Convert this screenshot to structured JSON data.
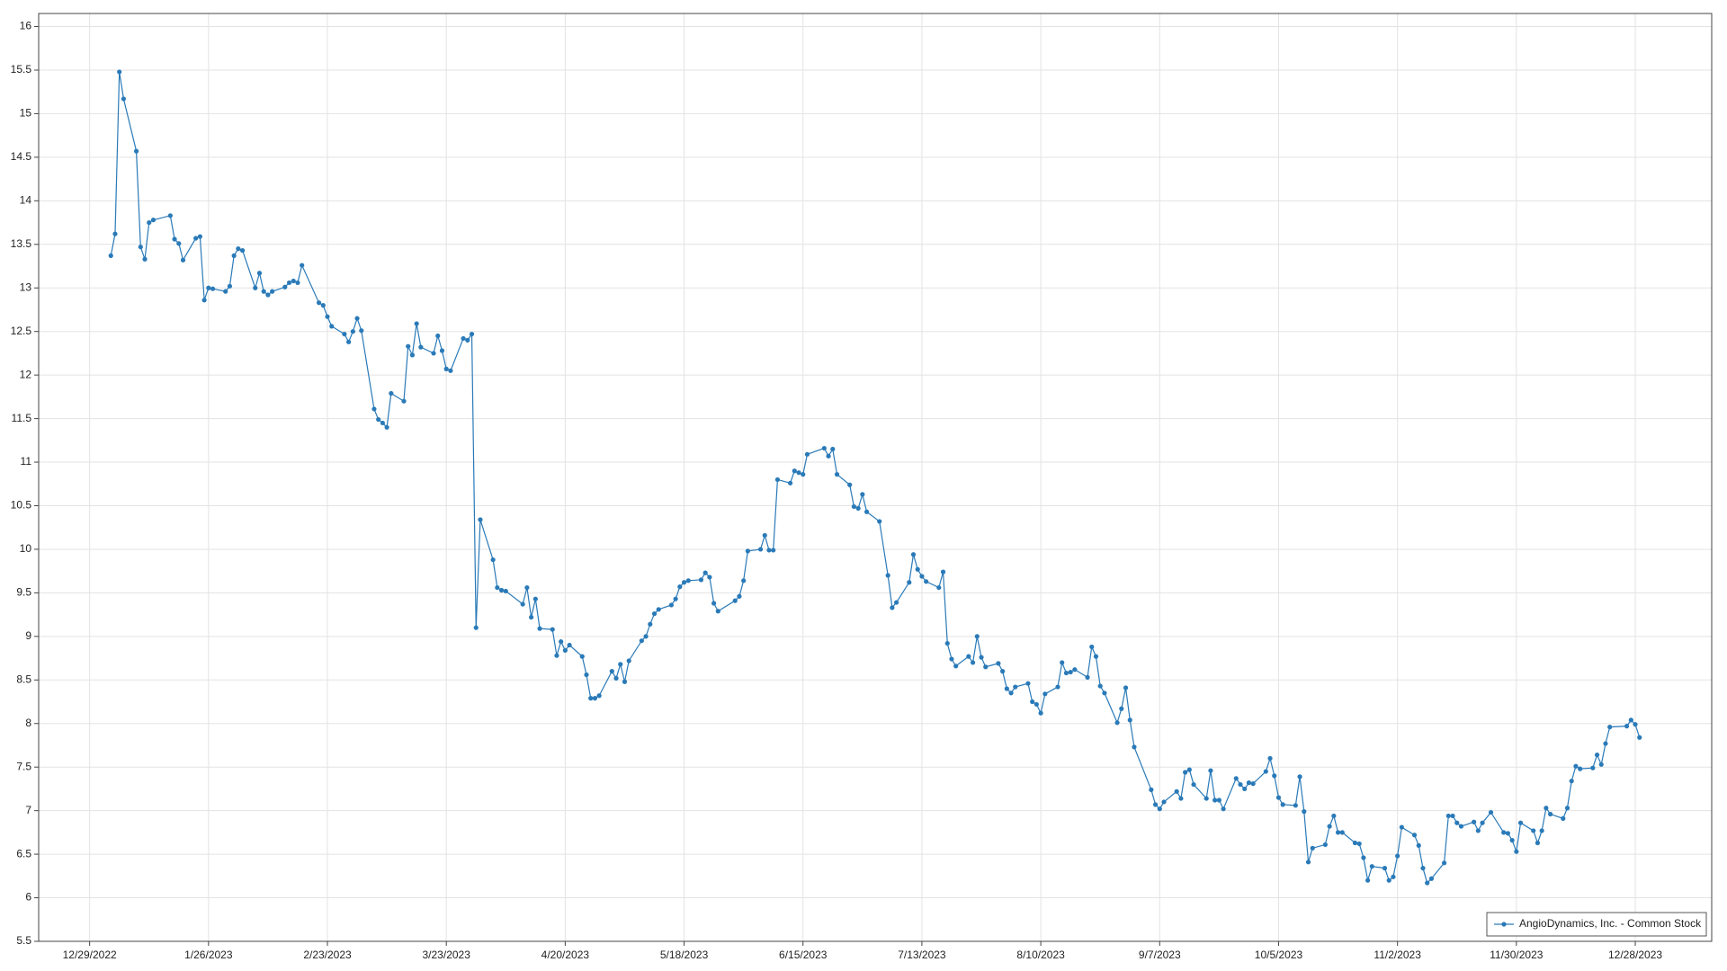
{
  "chart_data": {
    "type": "line",
    "xlim": [
      "12/17/2022",
      "1/15/2024"
    ],
    "xticks": [
      "12/29/2022",
      "1/26/2023",
      "2/23/2023",
      "3/23/2023",
      "4/20/2023",
      "5/18/2023",
      "6/15/2023",
      "7/13/2023",
      "8/10/2023",
      "9/7/2023",
      "10/5/2023",
      "11/2/2023",
      "11/30/2023",
      "12/28/2023"
    ],
    "ylim": [
      5.5,
      16.15
    ],
    "yticks": [
      5.5,
      6,
      6.5,
      7,
      7.5,
      8,
      8.5,
      9,
      9.5,
      10,
      10.5,
      11,
      11.5,
      12,
      12.5,
      13,
      13.5,
      14,
      14.5,
      15,
      15.5,
      16
    ],
    "grid": true,
    "legend": "bottom-right",
    "x": [
      "1/3/2023",
      "1/4/2023",
      "1/5/2023",
      "1/6/2023",
      "1/9/2023",
      "1/10/2023",
      "1/11/2023",
      "1/12/2023",
      "1/13/2023",
      "1/17/2023",
      "1/18/2023",
      "1/19/2023",
      "1/20/2023",
      "1/23/2023",
      "1/24/2023",
      "1/25/2023",
      "1/26/2023",
      "1/27/2023",
      "1/30/2023",
      "1/31/2023",
      "2/1/2023",
      "2/2/2023",
      "2/3/2023",
      "2/6/2023",
      "2/7/2023",
      "2/8/2023",
      "2/9/2023",
      "2/10/2023",
      "2/13/2023",
      "2/14/2023",
      "2/15/2023",
      "2/16/2023",
      "2/17/2023",
      "2/21/2023",
      "2/22/2023",
      "2/23/2023",
      "2/24/2023",
      "2/27/2023",
      "2/28/2023",
      "3/1/2023",
      "3/2/2023",
      "3/3/2023",
      "3/6/2023",
      "3/7/2023",
      "3/8/2023",
      "3/9/2023",
      "3/10/2023",
      "3/13/2023",
      "3/14/2023",
      "3/15/2023",
      "3/16/2023",
      "3/17/2023",
      "3/20/2023",
      "3/21/2023",
      "3/22/2023",
      "3/23/2023",
      "3/24/2023",
      "3/27/2023",
      "3/28/2023",
      "3/29/2023",
      "3/30/2023",
      "3/31/2023",
      "4/3/2023",
      "4/4/2023",
      "4/5/2023",
      "4/6/2023",
      "4/10/2023",
      "4/11/2023",
      "4/12/2023",
      "4/13/2023",
      "4/14/2023",
      "4/17/2023",
      "4/18/2023",
      "4/19/2023",
      "4/20/2023",
      "4/21/2023",
      "4/24/2023",
      "4/25/2023",
      "4/26/2023",
      "4/27/2023",
      "4/28/2023",
      "5/1/2023",
      "5/2/2023",
      "5/3/2023",
      "5/4/2023",
      "5/5/2023",
      "5/8/2023",
      "5/9/2023",
      "5/10/2023",
      "5/11/2023",
      "5/12/2023",
      "5/15/2023",
      "5/16/2023",
      "5/17/2023",
      "5/18/2023",
      "5/19/2023",
      "5/22/2023",
      "5/23/2023",
      "5/24/2023",
      "5/25/2023",
      "5/26/2023",
      "5/30/2023",
      "5/31/2023",
      "6/1/2023",
      "6/2/2023",
      "6/5/2023",
      "6/6/2023",
      "6/7/2023",
      "6/8/2023",
      "6/9/2023",
      "6/12/2023",
      "6/13/2023",
      "6/14/2023",
      "6/15/2023",
      "6/16/2023",
      "6/20/2023",
      "6/21/2023",
      "6/22/2023",
      "6/23/2023",
      "6/26/2023",
      "6/27/2023",
      "6/28/2023",
      "6/29/2023",
      "6/30/2023",
      "7/3/2023",
      "7/5/2023",
      "7/6/2023",
      "7/7/2023",
      "7/10/2023",
      "7/11/2023",
      "7/12/2023",
      "7/13/2023",
      "7/14/2023",
      "7/17/2023",
      "7/18/2023",
      "7/19/2023",
      "7/20/2023",
      "7/21/2023",
      "7/24/2023",
      "7/25/2023",
      "7/26/2023",
      "7/27/2023",
      "7/28/2023",
      "7/31/2023",
      "8/1/2023",
      "8/2/2023",
      "8/3/2023",
      "8/4/2023",
      "8/7/2023",
      "8/8/2023",
      "8/9/2023",
      "8/10/2023",
      "8/11/2023",
      "8/14/2023",
      "8/15/2023",
      "8/16/2023",
      "8/17/2023",
      "8/18/2023",
      "8/21/2023",
      "8/22/2023",
      "8/23/2023",
      "8/24/2023",
      "8/25/2023",
      "8/28/2023",
      "8/29/2023",
      "8/30/2023",
      "8/31/2023",
      "9/1/2023",
      "9/5/2023",
      "9/6/2023",
      "9/7/2023",
      "9/8/2023",
      "9/11/2023",
      "9/12/2023",
      "9/13/2023",
      "9/14/2023",
      "9/15/2023",
      "9/18/2023",
      "9/19/2023",
      "9/20/2023",
      "9/21/2023",
      "9/22/2023",
      "9/25/2023",
      "9/26/2023",
      "9/27/2023",
      "9/28/2023",
      "9/29/2023",
      "10/2/2023",
      "10/3/2023",
      "10/4/2023",
      "10/5/2023",
      "10/6/2023",
      "10/9/2023",
      "10/10/2023",
      "10/11/2023",
      "10/12/2023",
      "10/13/2023",
      "10/16/2023",
      "10/17/2023",
      "10/18/2023",
      "10/19/2023",
      "10/20/2023",
      "10/23/2023",
      "10/24/2023",
      "10/25/2023",
      "10/26/2023",
      "10/27/2023",
      "10/30/2023",
      "10/31/2023",
      "11/1/2023",
      "11/2/2023",
      "11/3/2023",
      "11/6/2023",
      "11/7/2023",
      "11/8/2023",
      "11/9/2023",
      "11/10/2023",
      "11/13/2023",
      "11/14/2023",
      "11/15/2023",
      "11/16/2023",
      "11/17/2023",
      "11/20/2023",
      "11/21/2023",
      "11/22/2023",
      "11/24/2023",
      "11/27/2023",
      "11/28/2023",
      "11/29/2023",
      "11/30/2023",
      "12/1/2023",
      "12/4/2023",
      "12/5/2023",
      "12/6/2023",
      "12/7/2023",
      "12/8/2023",
      "12/11/2023",
      "12/12/2023",
      "12/13/2023",
      "12/14/2023",
      "12/15/2023",
      "12/18/2023",
      "12/19/2023",
      "12/20/2023",
      "12/21/2023",
      "12/22/2023",
      "12/26/2023",
      "12/27/2023",
      "12/28/2023",
      "12/29/2023"
    ],
    "series": [
      {
        "name": "AngioDynamics, Inc. - Common Stock",
        "color": "#2a7ab8",
        "values": [
          13.37,
          13.62,
          15.48,
          15.17,
          14.57,
          13.47,
          13.33,
          13.75,
          13.78,
          13.83,
          13.56,
          13.51,
          13.32,
          13.57,
          13.59,
          12.86,
          13.0,
          12.99,
          12.96,
          13.02,
          13.37,
          13.45,
          13.43,
          13.0,
          13.17,
          12.96,
          12.92,
          12.96,
          13.01,
          13.06,
          13.08,
          13.06,
          13.26,
          12.83,
          12.8,
          12.67,
          12.56,
          12.47,
          12.38,
          12.5,
          12.65,
          12.51,
          11.61,
          11.49,
          11.45,
          11.4,
          11.79,
          11.7,
          12.33,
          12.23,
          12.59,
          12.32,
          12.25,
          12.45,
          12.28,
          12.07,
          12.05,
          12.42,
          12.4,
          12.47,
          9.1,
          10.34,
          9.88,
          9.56,
          9.53,
          9.52,
          9.37,
          9.56,
          9.22,
          9.43,
          9.09,
          9.08,
          8.78,
          8.94,
          8.84,
          8.9,
          8.77,
          8.56,
          8.29,
          8.29,
          8.32,
          8.6,
          8.52,
          8.68,
          8.48,
          8.72,
          8.95,
          9.0,
          9.14,
          9.26,
          9.31,
          9.36,
          9.43,
          9.57,
          9.62,
          9.64,
          9.65,
          9.73,
          9.68,
          9.38,
          9.29,
          9.41,
          9.46,
          9.64,
          9.98,
          10.0,
          10.16,
          9.99,
          9.99,
          10.8,
          10.76,
          10.9,
          10.88,
          10.86,
          11.09,
          11.16,
          11.07,
          11.15,
          10.86,
          10.74,
          10.49,
          10.47,
          10.63,
          10.43,
          10.32,
          9.7,
          9.33,
          9.39,
          9.62,
          9.94,
          9.77,
          9.69,
          9.63,
          9.56,
          9.74,
          8.92,
          8.74,
          8.66,
          8.77,
          8.7,
          9.0,
          8.76,
          8.65,
          8.69,
          8.6,
          8.4,
          8.35,
          8.42,
          8.46,
          8.25,
          8.22,
          8.12,
          8.34,
          8.42,
          8.7,
          8.58,
          8.59,
          8.62,
          8.53,
          8.88,
          8.77,
          8.43,
          8.35,
          8.01,
          8.17,
          8.41,
          8.04,
          7.73,
          7.24,
          7.07,
          7.02,
          7.1,
          7.22,
          7.14,
          7.44,
          7.47,
          7.3,
          7.14,
          7.46,
          7.12,
          7.12,
          7.02,
          7.37,
          7.3,
          7.25,
          7.32,
          7.31,
          7.45,
          7.6,
          7.4,
          7.15,
          7.07,
          7.06,
          7.39,
          6.99,
          6.41,
          6.57,
          6.61,
          6.82,
          6.94,
          6.75,
          6.75,
          6.63,
          6.62,
          6.46,
          6.2,
          6.36,
          6.34,
          6.2,
          6.24,
          6.48,
          6.81,
          6.72,
          6.6,
          6.34,
          6.17,
          6.22,
          6.4,
          6.94,
          6.94,
          6.86,
          6.82,
          6.87,
          6.77,
          6.86,
          6.98,
          6.75,
          6.74,
          6.66,
          6.53,
          6.86,
          6.77,
          6.63,
          6.77,
          7.03,
          6.96,
          6.91,
          7.03,
          7.34,
          7.51,
          7.48,
          7.49,
          7.64,
          7.53,
          7.77,
          7.96,
          7.97,
          8.04,
          7.99,
          7.84
        ]
      }
    ]
  }
}
